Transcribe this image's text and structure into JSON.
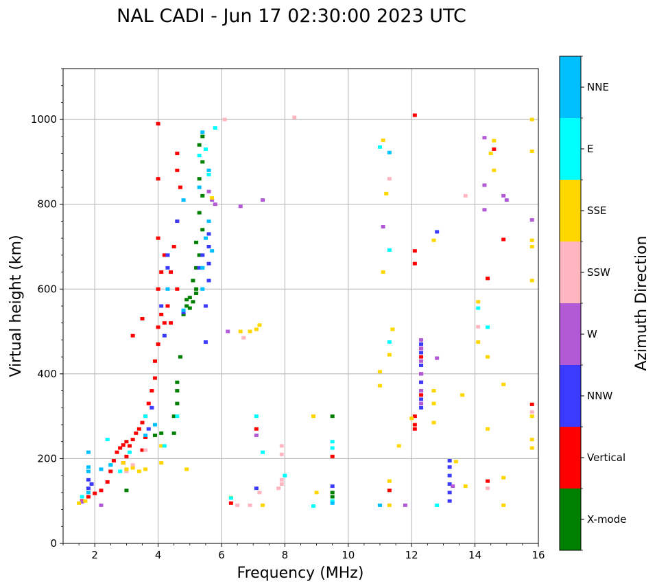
{
  "chart_data": {
    "type": "scatter",
    "title": "NAL CADI - Jun 17 02:30:00 2023 UTC",
    "xlabel": "Frequency (MHz)",
    "ylabel": "Virtual height (km)",
    "xlim": [
      1,
      16
    ],
    "ylim": [
      0,
      1120
    ],
    "xticks": [
      2,
      4,
      6,
      8,
      10,
      12,
      14,
      16
    ],
    "yticks": [
      0,
      200,
      400,
      600,
      800,
      1000
    ],
    "grid": true,
    "colorbar": {
      "label": "Azimuth Direction",
      "categories": [
        {
          "name": "X-mode",
          "color": "#008000"
        },
        {
          "name": "Vertical",
          "color": "#ff0000"
        },
        {
          "name": "NNW",
          "color": "#3b3bff"
        },
        {
          "name": "W",
          "color": "#b25ad6"
        },
        {
          "name": "SSW",
          "color": "#ffb6c1"
        },
        {
          "name": "SSE",
          "color": "#ffd700"
        },
        {
          "name": "E",
          "color": "#00ffff"
        },
        {
          "name": "NNE",
          "color": "#00bfff"
        }
      ]
    },
    "series": [
      {
        "name": "Vertical",
        "points": [
          [
            1.6,
            100
          ],
          [
            1.8,
            110
          ],
          [
            2.0,
            118
          ],
          [
            2.2,
            125
          ],
          [
            2.4,
            145
          ],
          [
            2.5,
            170
          ],
          [
            2.6,
            195
          ],
          [
            2.7,
            215
          ],
          [
            2.8,
            225
          ],
          [
            2.9,
            232
          ],
          [
            3.0,
            240
          ],
          [
            3.1,
            230
          ],
          [
            3.2,
            245
          ],
          [
            3.3,
            260
          ],
          [
            3.4,
            270
          ],
          [
            3.5,
            285
          ],
          [
            3.6,
            300
          ],
          [
            3.7,
            330
          ],
          [
            3.8,
            360
          ],
          [
            3.9,
            390
          ],
          [
            3.9,
            430
          ],
          [
            4.0,
            470
          ],
          [
            4.0,
            510
          ],
          [
            4.1,
            540
          ],
          [
            4.2,
            520
          ],
          [
            4.3,
            560
          ],
          [
            4.0,
            600
          ],
          [
            4.1,
            640
          ],
          [
            4.2,
            680
          ],
          [
            4.0,
            720
          ],
          [
            4.0,
            860
          ],
          [
            4.0,
            990
          ],
          [
            4.6,
            880
          ],
          [
            4.6,
            920
          ],
          [
            4.7,
            840
          ],
          [
            4.6,
            760
          ],
          [
            4.5,
            700
          ],
          [
            4.4,
            640
          ],
          [
            4.6,
            600
          ],
          [
            4.4,
            520
          ],
          [
            3.6,
            250
          ],
          [
            3.5,
            220
          ],
          [
            3.0,
            205
          ],
          [
            2.9,
            190
          ],
          [
            3.5,
            530
          ],
          [
            3.2,
            490
          ],
          [
            12.1,
            300
          ],
          [
            12.1,
            280
          ],
          [
            12.1,
            270
          ],
          [
            12.3,
            400
          ],
          [
            12.3,
            440
          ],
          [
            12.3,
            460
          ],
          [
            12.3,
            420
          ],
          [
            12.3,
            380
          ],
          [
            12.3,
            350
          ],
          [
            12.1,
            660
          ],
          [
            12.1,
            690
          ],
          [
            12.1,
            1010
          ],
          [
            11.3,
            125
          ],
          [
            14.4,
            147
          ],
          [
            14.4,
            625
          ],
          [
            14.6,
            930
          ],
          [
            14.9,
            717
          ],
          [
            15.8,
            328
          ],
          [
            6.3,
            95
          ],
          [
            7.1,
            270
          ],
          [
            9.5,
            205
          ]
        ]
      },
      {
        "name": "X-mode",
        "points": [
          [
            3.0,
            125
          ],
          [
            3.9,
            255
          ],
          [
            4.1,
            260
          ],
          [
            4.5,
            300
          ],
          [
            4.6,
            330
          ],
          [
            4.6,
            360
          ],
          [
            4.6,
            380
          ],
          [
            4.7,
            440
          ],
          [
            4.8,
            540
          ],
          [
            4.9,
            560
          ],
          [
            5.0,
            555
          ],
          [
            5.1,
            570
          ],
          [
            5.2,
            590
          ],
          [
            5.1,
            620
          ],
          [
            5.2,
            650
          ],
          [
            5.3,
            680
          ],
          [
            5.2,
            710
          ],
          [
            5.4,
            740
          ],
          [
            5.3,
            780
          ],
          [
            5.4,
            820
          ],
          [
            5.3,
            860
          ],
          [
            5.4,
            900
          ],
          [
            5.3,
            940
          ],
          [
            5.4,
            960
          ],
          [
            5.2,
            600
          ],
          [
            5.0,
            580
          ],
          [
            4.9,
            575
          ],
          [
            9.5,
            300
          ],
          [
            9.5,
            120
          ],
          [
            9.5,
            110
          ],
          [
            4.5,
            260
          ]
        ]
      },
      {
        "name": "NNW",
        "points": [
          [
            1.8,
            150
          ],
          [
            1.8,
            130
          ],
          [
            1.9,
            140
          ],
          [
            3.7,
            270
          ],
          [
            3.8,
            320
          ],
          [
            4.1,
            560
          ],
          [
            4.2,
            490
          ],
          [
            4.3,
            650
          ],
          [
            4.3,
            680
          ],
          [
            4.6,
            760
          ],
          [
            4.8,
            545
          ],
          [
            5.5,
            560
          ],
          [
            5.6,
            620
          ],
          [
            5.6,
            660
          ],
          [
            5.6,
            700
          ],
          [
            5.6,
            730
          ],
          [
            5.4,
            680
          ],
          [
            5.3,
            650
          ],
          [
            7.1,
            130
          ],
          [
            9.5,
            135
          ],
          [
            12.3,
            320
          ],
          [
            12.3,
            340
          ],
          [
            12.3,
            360
          ],
          [
            12.3,
            380
          ],
          [
            12.3,
            400
          ],
          [
            12.3,
            420
          ],
          [
            12.3,
            450
          ],
          [
            12.3,
            470
          ],
          [
            13.2,
            100
          ],
          [
            13.2,
            120
          ],
          [
            13.2,
            140
          ],
          [
            13.2,
            160
          ],
          [
            13.2,
            180
          ],
          [
            13.2,
            195
          ],
          [
            12.8,
            735
          ],
          [
            5.5,
            475
          ]
        ]
      },
      {
        "name": "W",
        "points": [
          [
            1.6,
            98
          ],
          [
            2.2,
            90
          ],
          [
            5.6,
            830
          ],
          [
            5.7,
            810
          ],
          [
            5.8,
            800
          ],
          [
            6.2,
            500
          ],
          [
            6.6,
            795
          ],
          [
            7.1,
            255
          ],
          [
            7.3,
            810
          ],
          [
            12.3,
            330
          ],
          [
            12.3,
            360
          ],
          [
            12.3,
            400
          ],
          [
            12.3,
            430
          ],
          [
            12.3,
            460
          ],
          [
            12.3,
            480
          ],
          [
            12.8,
            437
          ],
          [
            13.3,
            135
          ],
          [
            14.3,
            787
          ],
          [
            14.3,
            845
          ],
          [
            14.3,
            957
          ],
          [
            14.9,
            820
          ],
          [
            15.0,
            810
          ],
          [
            15.8,
            763
          ],
          [
            11.8,
            90
          ],
          [
            11.1,
            747
          ]
        ]
      },
      {
        "name": "SSW",
        "points": [
          [
            3.2,
            185
          ],
          [
            3.0,
            170
          ],
          [
            3.6,
            220
          ],
          [
            6.7,
            485
          ],
          [
            6.5,
            90
          ],
          [
            6.9,
            90
          ],
          [
            7.2,
            120
          ],
          [
            7.8,
            130
          ],
          [
            7.9,
            140
          ],
          [
            7.9,
            150
          ],
          [
            7.9,
            230
          ],
          [
            7.9,
            210
          ],
          [
            8.3,
            1005
          ],
          [
            11.3,
            860
          ],
          [
            13.7,
            820
          ],
          [
            14.1,
            511
          ],
          [
            14.4,
            130
          ],
          [
            15.8,
            310
          ],
          [
            6.1,
            1000
          ]
        ]
      },
      {
        "name": "SSE",
        "points": [
          [
            1.5,
            95
          ],
          [
            1.7,
            100
          ],
          [
            2.9,
            190
          ],
          [
            3.0,
            175
          ],
          [
            3.2,
            178
          ],
          [
            3.4,
            170
          ],
          [
            3.6,
            175
          ],
          [
            4.1,
            190
          ],
          [
            4.1,
            230
          ],
          [
            4.9,
            175
          ],
          [
            5.7,
            815
          ],
          [
            6.6,
            500
          ],
          [
            6.9,
            500
          ],
          [
            7.1,
            505
          ],
          [
            7.2,
            515
          ],
          [
            6.3,
            108
          ],
          [
            8.9,
            300
          ],
          [
            9.0,
            120
          ],
          [
            11.0,
            372
          ],
          [
            11.0,
            405
          ],
          [
            11.1,
            951
          ],
          [
            11.1,
            640
          ],
          [
            11.2,
            825
          ],
          [
            11.3,
            445
          ],
          [
            11.4,
            505
          ],
          [
            11.3,
            90
          ],
          [
            11.3,
            147
          ],
          [
            11.6,
            230
          ],
          [
            12.7,
            360
          ],
          [
            12.7,
            330
          ],
          [
            12.7,
            285
          ],
          [
            12.7,
            715
          ],
          [
            13.6,
            350
          ],
          [
            13.7,
            135
          ],
          [
            14.1,
            475
          ],
          [
            14.4,
            440
          ],
          [
            14.4,
            270
          ],
          [
            14.5,
            920
          ],
          [
            14.6,
            950
          ],
          [
            14.6,
            880
          ],
          [
            14.9,
            375
          ],
          [
            14.9,
            155
          ],
          [
            14.9,
            90
          ],
          [
            15.8,
            1000
          ],
          [
            15.8,
            925
          ],
          [
            15.8,
            715
          ],
          [
            15.8,
            700
          ],
          [
            15.8,
            620
          ],
          [
            15.8,
            300
          ],
          [
            15.8,
            245
          ],
          [
            15.8,
            225
          ],
          [
            13.4,
            193
          ],
          [
            12.0,
            295
          ],
          [
            7.3,
            90
          ],
          [
            14.1,
            570
          ]
        ]
      },
      {
        "name": "E",
        "points": [
          [
            1.6,
            110
          ],
          [
            2.4,
            245
          ],
          [
            2.5,
            185
          ],
          [
            2.8,
            170
          ],
          [
            3.1,
            215
          ],
          [
            3.6,
            300
          ],
          [
            4.2,
            230
          ],
          [
            4.6,
            300
          ],
          [
            5.3,
            915
          ],
          [
            5.5,
            930
          ],
          [
            5.6,
            870
          ],
          [
            5.8,
            980
          ],
          [
            6.3,
            107
          ],
          [
            7.1,
            300
          ],
          [
            7.3,
            215
          ],
          [
            8.0,
            160
          ],
          [
            8.9,
            88
          ],
          [
            9.5,
            240
          ],
          [
            9.5,
            225
          ],
          [
            9.5,
            100
          ],
          [
            11.0,
            935
          ],
          [
            11.3,
            475
          ],
          [
            11.3,
            692
          ],
          [
            12.8,
            90
          ],
          [
            14.1,
            555
          ],
          [
            14.4,
            510
          ],
          [
            5.4,
            650
          ]
        ]
      },
      {
        "name": "NNE",
        "points": [
          [
            1.8,
            215
          ],
          [
            1.8,
            180
          ],
          [
            1.8,
            170
          ],
          [
            1.8,
            120
          ],
          [
            2.5,
            185
          ],
          [
            2.2,
            175
          ],
          [
            3.6,
            255
          ],
          [
            3.9,
            280
          ],
          [
            4.3,
            600
          ],
          [
            4.8,
            550
          ],
          [
            4.8,
            810
          ],
          [
            5.6,
            880
          ],
          [
            5.4,
            650
          ],
          [
            5.4,
            600
          ],
          [
            5.7,
            690
          ],
          [
            5.5,
            720
          ],
          [
            5.6,
            760
          ],
          [
            5.3,
            840
          ],
          [
            9.5,
            95
          ],
          [
            11.0,
            90
          ],
          [
            11.3,
            922
          ],
          [
            5.4,
            970
          ]
        ]
      }
    ]
  }
}
